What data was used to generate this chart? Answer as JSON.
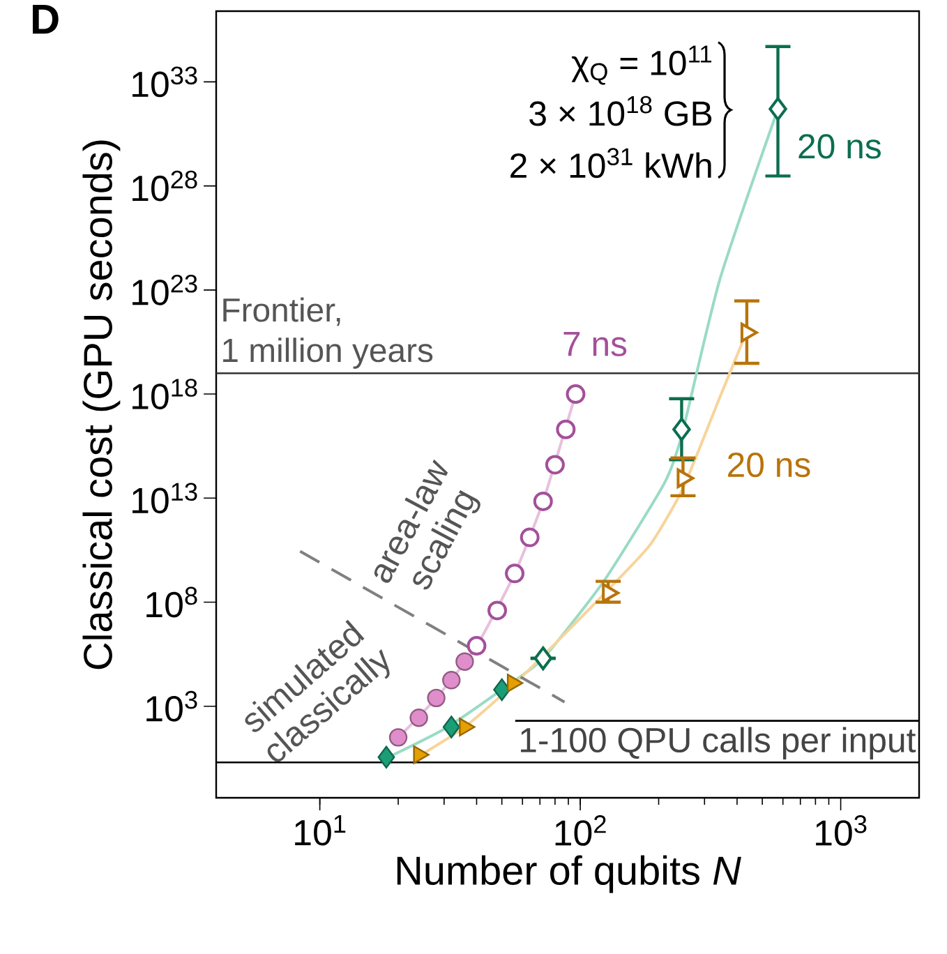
{
  "chart_data": {
    "type": "scatter",
    "xlabel": "Number of qubits *N*",
    "ylabel": "Classical cost (GPU seconds)",
    "log": "xy",
    "xlim": [
      4,
      2000
    ],
    "ylim": [
      0.04,
      2.5e+36
    ],
    "xticks": [
      {
        "value": 10,
        "label": "10$^{1}$"
      },
      {
        "value": 100,
        "label": "10$^{2}$"
      },
      {
        "value": 1000,
        "label": "10$^{3}$"
      }
    ],
    "yticks": [
      {
        "value": 1000.0,
        "label": "10$^{3}$"
      },
      {
        "value": 100000000.0,
        "label": "10$^{8}$"
      },
      {
        "value": 10000000000000.0,
        "label": "10$^{13}$"
      },
      {
        "value": 1e+18,
        "label": "10$^{18}$"
      },
      {
        "value": 1e+23,
        "label": "10$^{23}$"
      },
      {
        "value": 1e+28,
        "label": "10$^{28}$"
      },
      {
        "value": 1e+33,
        "label": "10$^{33}$"
      }
    ],
    "grid": false,
    "series": [
      {
        "type": "line",
        "color": "#e8c0dc",
        "marker": "none",
        "x": [
          19,
          28,
          40,
          56,
          72,
          96
        ],
        "values": [
          16,
          2500,
          800000.0,
          2400000000.0,
          7000000000000.0,
          1e+18
        ]
      },
      {
        "type": "line",
        "color": "#9adbc5",
        "marker": "none",
        "x": [
          18,
          30,
          50,
          72,
          123,
          210,
          245,
          343,
          574
        ],
        "values": [
          3.2,
          80,
          6300,
          200000.0,
          1000000000.0,
          50000000000000.0,
          1e+16,
          3e+23,
          5e+31
        ]
      },
      {
        "type": "line",
        "color": "#f8d49a",
        "marker": "none",
        "x": [
          24,
          36,
          55,
          80,
          128,
          186,
          248,
          345,
          436
        ],
        "values": [
          4,
          100,
          10000.0,
          1000000.0,
          400000000.0,
          60000000000.0,
          30000000000000.0,
          8e+17,
          1e+21
        ]
      },
      {
        "type": "line",
        "color": "#808080",
        "marker": "none",
        "line_style": "dashed",
        "x": [
          8.4,
          87
        ],
        "values": [
          28000000000.0,
          1600
        ]
      },
      {
        "color": "#e08ecb",
        "marker": "circle",
        "x": [
          20,
          24,
          28,
          32,
          36
        ],
        "values": [
          32,
          280,
          2500,
          18000.0,
          140000.0
        ]
      },
      {
        "color": "#a3509a",
        "marker": "circle",
        "colors": [
          "#ffffff",
          "#ffffff",
          "#ffffff",
          "#ffffff",
          "#ffffff",
          "#ffffff",
          "#ffffff",
          "#ffffff"
        ],
        "x": [
          40,
          48,
          56,
          64,
          72,
          80,
          88,
          96
        ],
        "values": [
          800000.0,
          40000000.0,
          2400000000.0,
          130000000000.0,
          7000000000000.0,
          400000000000000.0,
          2e+16,
          1e+18
        ]
      },
      {
        "color": "#1a9e77",
        "marker": "diamond",
        "x": [
          18,
          32,
          50
        ],
        "values": [
          3.6,
          100,
          6200
        ]
      },
      {
        "color": "#0b6e4f",
        "marker": "diamond",
        "colors": [
          "#ffffff",
          "#ffffff",
          "#ffffff"
        ],
        "x": [
          72,
          245,
          574
        ],
        "values": [
          200000.0,
          2e+16,
          5e+31
        ],
        "errors": [
          null,
          [
            700000000000000.0,
            6e+17
          ],
          [
            3e+28,
            5e+34
          ]
        ]
      },
      {
        "color": "#e69f00",
        "marker": "triangle",
        "x": [
          24,
          36,
          55
        ],
        "values": [
          4.7,
          100,
          13000.0
        ]
      },
      {
        "color": "#b8730a",
        "marker": "triangle",
        "colors": [
          "#ffffff",
          "#ffffff",
          "#ffffff"
        ],
        "x": [
          128,
          248,
          436
        ],
        "values": [
          280000000.0,
          90000000000000.0,
          9e+20
        ],
        "errors": [
          [
            100000000.0,
            1000000000.0
          ],
          [
            13000000000000.0,
            850000000000000.0
          ],
          [
            3e+19,
            3e+22
          ]
        ]
      }
    ],
    "ref_lines": [
      {
        "axis": "y",
        "value": 1e+19,
        "label": [
          "Frontier,",
          "1 million years"
        ],
        "color": "#333333"
      },
      {
        "axis": "y",
        "value": 2,
        "label": "1-100 QPU calls per input",
        "color": "#000000"
      },
      {
        "axis": "y",
        "value": 200,
        "color": "#000000"
      }
    ],
    "annotations": [
      "D",
      "simulated classically",
      "area-law scaling",
      "χ$_{Q}$ = 10$^{11}$",
      "3 × 10$^{18}$ GB",
      "2 × 10$^{31}$ kWh",
      "7 ns",
      "20 ns",
      "20 ns"
    ]
  }
}
